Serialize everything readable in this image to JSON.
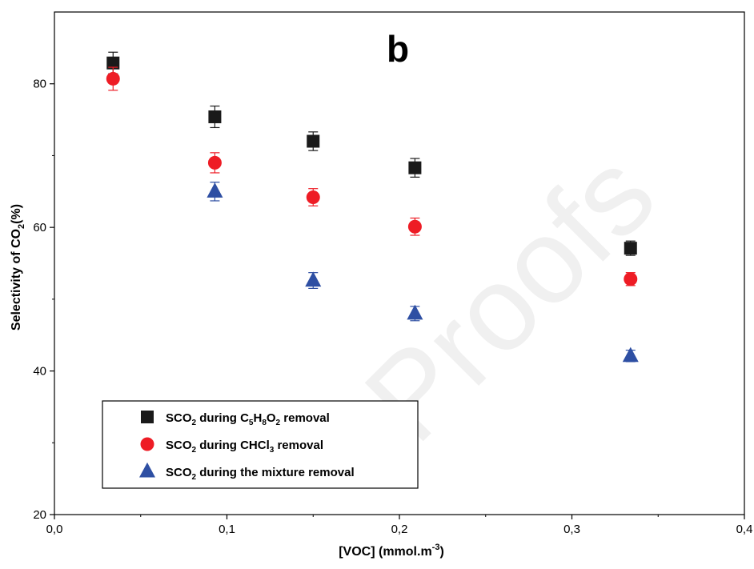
{
  "chart_data": {
    "type": "scatter",
    "panel_label": "b",
    "watermark": "Proofs",
    "xlabel": "[VOC] (mmol.m⁻³)",
    "xlabel_parts": {
      "main": "[VOC] (mmol.m",
      "sup": "-3",
      "tail": ")"
    },
    "ylabel": "Selectivity of CO₂(%)",
    "ylabel_parts": {
      "main": "Selectivity of CO",
      "sub": "2",
      "tail": "(%)"
    },
    "xlim": [
      0.0,
      0.4
    ],
    "ylim": [
      20,
      90
    ],
    "xticks": [
      0.0,
      0.1,
      0.2,
      0.3,
      0.4
    ],
    "xtick_labels": [
      "0,0",
      "0,1",
      "0,2",
      "0,3",
      "0,4"
    ],
    "yticks": [
      20,
      40,
      60,
      80
    ],
    "ytick_labels": [
      "20",
      "40",
      "60",
      "80"
    ],
    "grid": false,
    "legend_position": "bottom-left",
    "series": [
      {
        "name": "SCO₂ during C₅H₈O₂ removal",
        "legend_parts": [
          [
            "SCO",
            ""
          ],
          [
            "2",
            "sub"
          ],
          [
            " during C",
            ""
          ],
          [
            "5",
            "sub"
          ],
          [
            "H",
            ""
          ],
          [
            "8",
            "sub"
          ],
          [
            "O",
            ""
          ],
          [
            "2",
            "sub"
          ],
          [
            " removal",
            ""
          ]
        ],
        "marker": "square",
        "color": "#1a1a1a",
        "x": [
          0.034,
          0.093,
          0.15,
          0.209,
          0.334
        ],
        "y": [
          82.9,
          75.4,
          72.0,
          68.3,
          57.1
        ],
        "err": [
          1.5,
          1.5,
          1.3,
          1.3,
          1.0
        ]
      },
      {
        "name": "SCO₂ during CHCl₃ removal",
        "legend_parts": [
          [
            "SCO",
            ""
          ],
          [
            "2",
            "sub"
          ],
          [
            " during CHCl",
            ""
          ],
          [
            "3",
            "sub"
          ],
          [
            " removal",
            ""
          ]
        ],
        "marker": "circle",
        "color": "#ee1c25",
        "x": [
          0.034,
          0.093,
          0.15,
          0.209,
          0.334
        ],
        "y": [
          80.7,
          69.0,
          64.2,
          60.1,
          52.8
        ],
        "err": [
          1.6,
          1.4,
          1.2,
          1.2,
          0.9
        ]
      },
      {
        "name": "SCO₂ during the mixture removal",
        "legend_parts": [
          [
            "SCO",
            ""
          ],
          [
            "2",
            "sub"
          ],
          [
            " during the mixture removal",
            ""
          ]
        ],
        "marker": "triangle",
        "color": "#2e4fa3",
        "x": [
          0.093,
          0.15,
          0.209,
          0.334
        ],
        "y": [
          65.0,
          52.6,
          48.0,
          42.1
        ],
        "err": [
          1.3,
          1.1,
          1.0,
          0.8
        ]
      }
    ]
  }
}
